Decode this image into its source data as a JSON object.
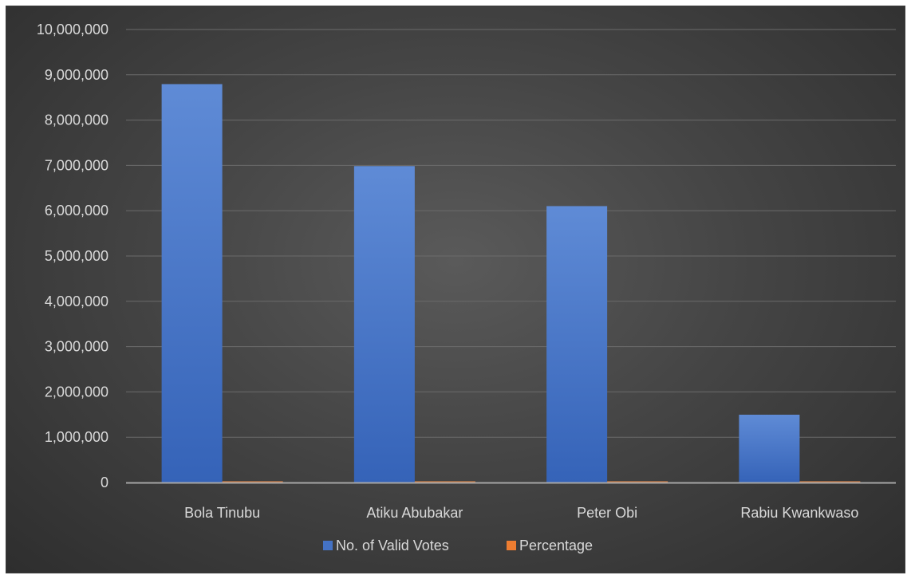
{
  "chart_data": {
    "type": "bar",
    "categories": [
      "Bola Tinubu",
      "Atiku Abubakar",
      "Peter Obi",
      "Rabiu Kwankwaso"
    ],
    "series": [
      {
        "name": "No. of Valid Votes",
        "values": [
          8794726,
          6984520,
          6101533,
          1496687
        ],
        "color": "#4472c4"
      },
      {
        "name": "Percentage",
        "values": [
          36.61,
          29.07,
          25.4,
          6.23
        ],
        "color": "#ed7d31"
      }
    ],
    "ylim": [
      0,
      10000000
    ],
    "yticks": [
      0,
      1000000,
      2000000,
      3000000,
      4000000,
      5000000,
      6000000,
      7000000,
      8000000,
      9000000,
      10000000
    ],
    "ytick_labels": [
      "0",
      "1,000,000",
      "2,000,000",
      "3,000,000",
      "4,000,000",
      "5,000,000",
      "6,000,000",
      "7,000,000",
      "8,000,000",
      "9,000,000",
      "10,000,000"
    ],
    "grid": true,
    "legend_position": "bottom",
    "title": "",
    "xlabel": "",
    "ylabel": ""
  }
}
